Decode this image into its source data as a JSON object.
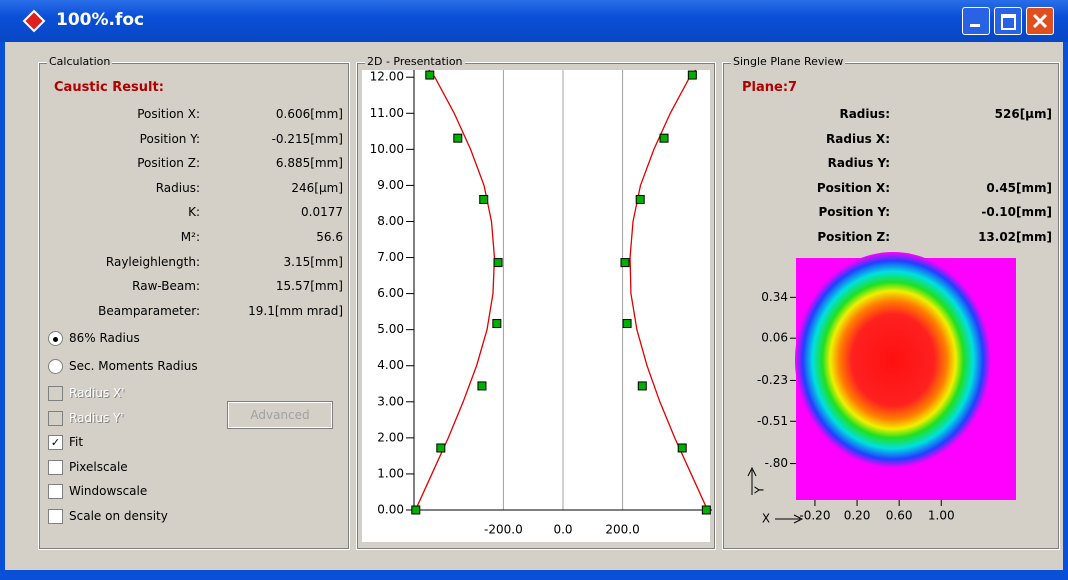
{
  "window": {
    "title": "100%.foc"
  },
  "calculation": {
    "group": "Calculation",
    "heading": "Caustic Result:",
    "rows": [
      {
        "label": "Position X:",
        "value": "0.606[mm]"
      },
      {
        "label": "Position Y:",
        "value": "-0.215[mm]"
      },
      {
        "label": "Position Z:",
        "value": "6.885[mm]"
      },
      {
        "label": "Radius:",
        "value": "246[µm]"
      },
      {
        "label": "K:",
        "value": "0.0177"
      },
      {
        "label": "M²:",
        "value": "56.6"
      },
      {
        "label": "Rayleighlength:",
        "value": "3.15[mm]"
      },
      {
        "label": "Raw-Beam:",
        "value": "15.57[mm]"
      },
      {
        "label": "Beamparameter:",
        "value": "19.1[mm mrad]"
      }
    ],
    "options": [
      {
        "label": "86% Radius",
        "checked": true
      },
      {
        "label": "Sec. Moments Radius",
        "checked": false
      }
    ],
    "checkboxes": [
      {
        "label": "Radius X'",
        "checked": false,
        "enabled": false
      },
      {
        "label": "Radius Y'",
        "checked": false,
        "enabled": false
      },
      {
        "label": "Fit",
        "checked": true,
        "enabled": true
      },
      {
        "label": "Pixelscale",
        "checked": false,
        "enabled": true
      },
      {
        "label": "Windowscale",
        "checked": false,
        "enabled": true
      },
      {
        "label": "Scale on density",
        "checked": false,
        "enabled": true
      }
    ],
    "button": "Advanced"
  },
  "presentation": {
    "group": "2D - Presentation",
    "type": "scatter",
    "xlim": [
      -500,
      500
    ],
    "ylim": [
      0,
      12.2
    ],
    "xticks": [
      {
        "value": -200,
        "label": "-200.0"
      },
      {
        "value": 0,
        "label": "0.0"
      },
      {
        "value": 200,
        "label": "200.0"
      }
    ],
    "yticks": [
      {
        "value": 0,
        "label": "0.00"
      },
      {
        "value": 1,
        "label": "1.00"
      },
      {
        "value": 2,
        "label": "2.00"
      },
      {
        "value": 3,
        "label": "3.00"
      },
      {
        "value": 4,
        "label": "4.00"
      },
      {
        "value": 5,
        "label": "5.00"
      },
      {
        "value": 6,
        "label": "6.00"
      },
      {
        "value": 7,
        "label": "7.00"
      },
      {
        "value": 8,
        "label": "8.00"
      },
      {
        "value": 9,
        "label": "9.00"
      },
      {
        "value": 10,
        "label": "10.00"
      },
      {
        "value": 11,
        "label": "11.00"
      },
      {
        "value": 12,
        "label": "12.00"
      }
    ],
    "grid": true,
    "points": {
      "color": "#00b000",
      "x": [
        -447,
        -353,
        -266,
        -218,
        -222,
        -272,
        -410,
        -494,
        434,
        339,
        259,
        208,
        215,
        266,
        400,
        481
      ],
      "y": [
        12.06,
        10.31,
        8.61,
        6.86,
        5.17,
        3.44,
        1.72,
        0,
        12.06,
        10.31,
        8.61,
        6.86,
        5.17,
        3.44,
        1.72,
        0
      ]
    },
    "fit": [
      {
        "color": "#e00000",
        "x": [
          -495,
          -440,
          -385,
          -335,
          -290,
          -255,
          -235,
          -230,
          -240,
          -265,
          -310,
          -365,
          -430,
          -450
        ],
        "y": [
          0,
          1,
          2,
          3,
          4,
          5,
          6,
          7,
          8,
          9,
          10,
          11,
          12,
          12.2
        ]
      },
      {
        "color": "#e00000",
        "x": [
          485,
          430,
          375,
          325,
          282,
          248,
          228,
          225,
          235,
          260,
          305,
          360,
          425,
          445
        ],
        "y": [
          0,
          1,
          2,
          3,
          4,
          5,
          6,
          7,
          8,
          9,
          10,
          11,
          12,
          12.2
        ]
      }
    ]
  },
  "plane": {
    "group": "Single Plane Review",
    "heading": "Plane:7",
    "rows": [
      {
        "label": "Radius:",
        "value": "526[µm]"
      },
      {
        "label": "Radius X:"
      },
      {
        "label": "Radius Y:"
      },
      {
        "label": "Position X:",
        "value": "0.45[mm]"
      },
      {
        "label": "Position Y:",
        "value": "-0.10[mm]"
      },
      {
        "label": "Position Z:",
        "value": "13.02[mm]"
      }
    ],
    "beam_profile": {
      "xlim": [
        -0.38,
        1.71
      ],
      "ylim": [
        -1.05,
        0.61
      ],
      "xticks": [
        {
          "value": -0.2,
          "label": "-0.20"
        },
        {
          "value": 0.2,
          "label": "0.20"
        },
        {
          "value": 0.6,
          "label": "0.60"
        },
        {
          "value": 1,
          "label": "1.00"
        }
      ],
      "yticks": [
        {
          "value": 0.34,
          "label": "0.34"
        },
        {
          "value": 0.06,
          "label": "0.06"
        },
        {
          "value": -0.23,
          "label": "-0.23"
        },
        {
          "value": -0.51,
          "label": "-0.51"
        },
        {
          "value": -0.8,
          "label": "-.80"
        }
      ],
      "x_label": "X",
      "y_label": "Y"
    }
  }
}
